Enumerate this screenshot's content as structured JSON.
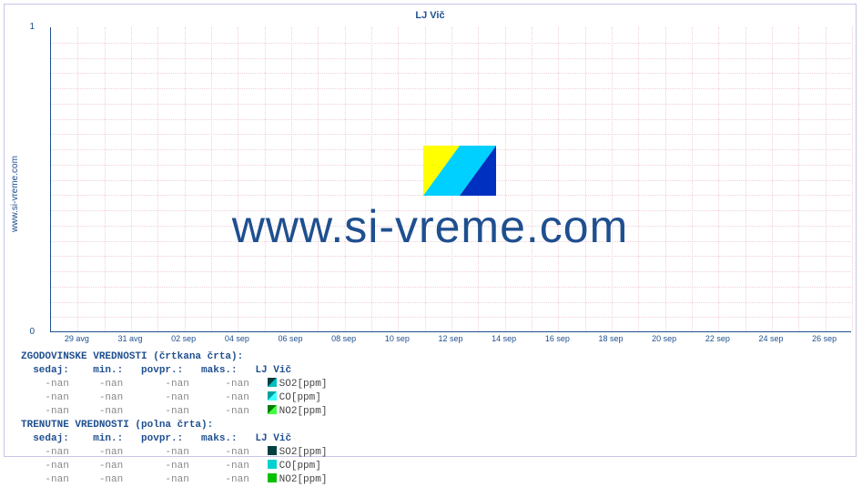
{
  "site": "www.si-vreme.com",
  "chart": {
    "title": "LJ Vič",
    "type": "line",
    "ylim": [
      0,
      1
    ],
    "yticks": [
      {
        "v": 0,
        "label": "0"
      },
      {
        "v": 1,
        "label": "1"
      }
    ],
    "xticks": [
      "29 avg",
      "31 avg",
      "02 sep",
      "04 sep",
      "06 sep",
      "08 sep",
      "10 sep",
      "12 sep",
      "14 sep",
      "16 sep",
      "18 sep",
      "20 sep",
      "22 sep",
      "24 sep",
      "26 sep"
    ],
    "x_minor_per_major": 2,
    "y_minor_count": 20,
    "background_color": "#ffffff",
    "grid_color": "#f0d0d8",
    "axis_color": "#1f4f8f",
    "label_color": "#1f4f8f",
    "label_fontsize": 10,
    "tick_fontsize": 9,
    "watermark_text": "www.si-vreme.com",
    "watermark_fontsize": 50,
    "watermark_color": "#1f4f8f",
    "logo_colors": {
      "yellow": "#ffff00",
      "cyan": "#00d0ff",
      "blue": "#0030c0"
    }
  },
  "legend": {
    "hist_header": "ZGODOVINSKE VREDNOSTI (črtkana črta):",
    "curr_header": "TRENUTNE VREDNOSTI (polna črta):",
    "cols_label": "  sedaj:    min.:   povpr.:   maks.:   ",
    "group_label": "LJ Vič",
    "nan": "-nan",
    "rows": [
      {
        "series": "SO2[ppm]",
        "hist_swatch_diag": [
          "#004040",
          "#00c0c0"
        ],
        "curr_swatch": "#004040"
      },
      {
        "series": "CO[ppm]",
        "hist_swatch_diag": [
          "#00a0a0",
          "#40ffff"
        ],
        "curr_swatch": "#00d0d0"
      },
      {
        "series": "NO2[ppm]",
        "hist_swatch_diag": [
          "#008000",
          "#40ff40"
        ],
        "curr_swatch": "#00c000"
      }
    ]
  }
}
